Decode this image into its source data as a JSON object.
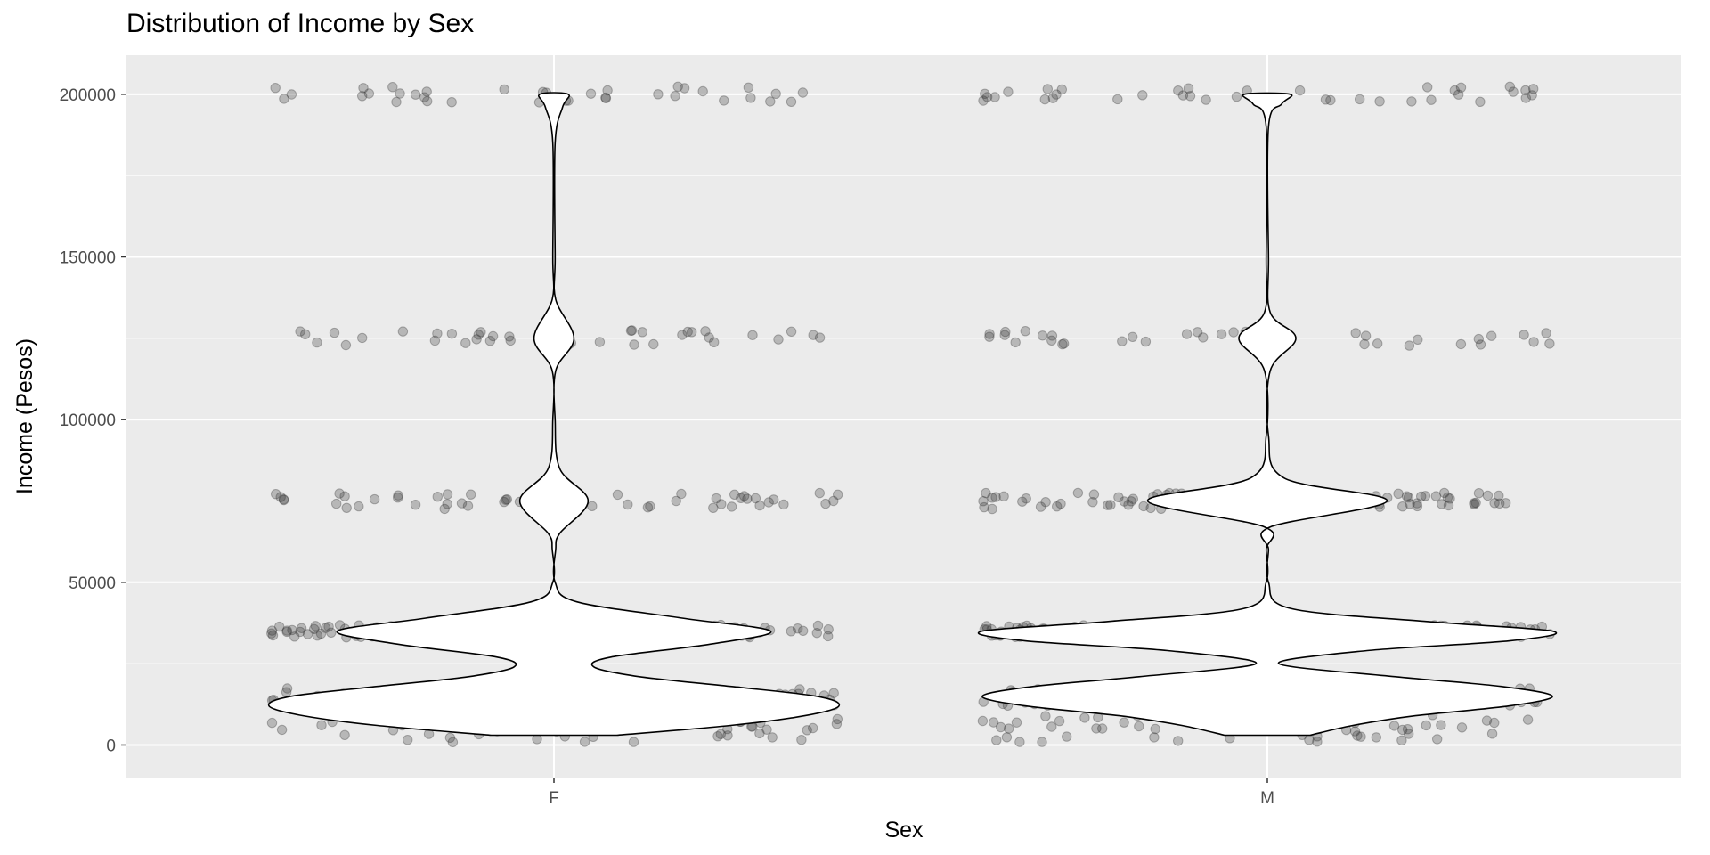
{
  "chart_data": {
    "type": "violin",
    "title": "Distribution of Income by Sex",
    "xlabel": "Sex",
    "ylabel": "Income (Pesos)",
    "categories": [
      "F",
      "M"
    ],
    "ylim": [
      -10000,
      212000
    ],
    "yticks": [
      0,
      50000,
      100000,
      150000,
      200000
    ],
    "grid": true,
    "overlay": "jittered points",
    "point_color": "#333333",
    "panel_background": "#ebebeb",
    "income_levels": [
      5000,
      15000,
      35000,
      75000,
      125000,
      200000
    ],
    "violins": [
      {
        "category": "F",
        "range": [
          3000,
          200000
        ],
        "relative_density": [
          {
            "income": 3000,
            "w": 0.22
          },
          {
            "income": 6000,
            "w": 0.62
          },
          {
            "income": 9000,
            "w": 0.88
          },
          {
            "income": 12000,
            "w": 1.0
          },
          {
            "income": 15000,
            "w": 0.92
          },
          {
            "income": 18000,
            "w": 0.62
          },
          {
            "income": 21000,
            "w": 0.3
          },
          {
            "income": 24000,
            "w": 0.14
          },
          {
            "income": 27000,
            "w": 0.2
          },
          {
            "income": 31000,
            "w": 0.55
          },
          {
            "income": 35000,
            "w": 0.76
          },
          {
            "income": 39000,
            "w": 0.45
          },
          {
            "income": 44000,
            "w": 0.08
          },
          {
            "income": 50000,
            "w": 0.004
          },
          {
            "income": 60000,
            "w": 0.006
          },
          {
            "income": 65000,
            "w": 0.02
          },
          {
            "income": 75000,
            "w": 0.12
          },
          {
            "income": 85000,
            "w": 0.02
          },
          {
            "income": 100000,
            "w": 0.004
          },
          {
            "income": 115000,
            "w": 0.006
          },
          {
            "income": 125000,
            "w": 0.07
          },
          {
            "income": 137000,
            "w": 0.006
          },
          {
            "income": 150000,
            "w": 0.004
          },
          {
            "income": 185000,
            "w": 0.004
          },
          {
            "income": 196000,
            "w": 0.03
          },
          {
            "income": 200000,
            "w": 0.05
          }
        ]
      },
      {
        "category": "M",
        "range": [
          3000,
          200000
        ],
        "relative_density": [
          {
            "income": 3000,
            "w": 0.15
          },
          {
            "income": 6000,
            "w": 0.3
          },
          {
            "income": 9000,
            "w": 0.52
          },
          {
            "income": 12000,
            "w": 0.85
          },
          {
            "income": 15000,
            "w": 1.0
          },
          {
            "income": 18000,
            "w": 0.82
          },
          {
            "income": 21000,
            "w": 0.45
          },
          {
            "income": 25000,
            "w": 0.04
          },
          {
            "income": 29000,
            "w": 0.35
          },
          {
            "income": 32000,
            "w": 0.85
          },
          {
            "income": 35000,
            "w": 1.0
          },
          {
            "income": 38000,
            "w": 0.55
          },
          {
            "income": 42000,
            "w": 0.08
          },
          {
            "income": 50000,
            "w": 0.004
          },
          {
            "income": 60000,
            "w": 0.004
          },
          {
            "income": 67000,
            "w": 0.01
          },
          {
            "income": 75000,
            "w": 0.42
          },
          {
            "income": 82000,
            "w": 0.06
          },
          {
            "income": 95000,
            "w": 0.004
          },
          {
            "income": 115000,
            "w": 0.01
          },
          {
            "income": 125000,
            "w": 0.1
          },
          {
            "income": 133000,
            "w": 0.01
          },
          {
            "income": 150000,
            "w": 0.004
          },
          {
            "income": 190000,
            "w": 0.004
          },
          {
            "income": 197000,
            "w": 0.05
          },
          {
            "income": 200000,
            "w": 0.08
          }
        ]
      }
    ]
  }
}
